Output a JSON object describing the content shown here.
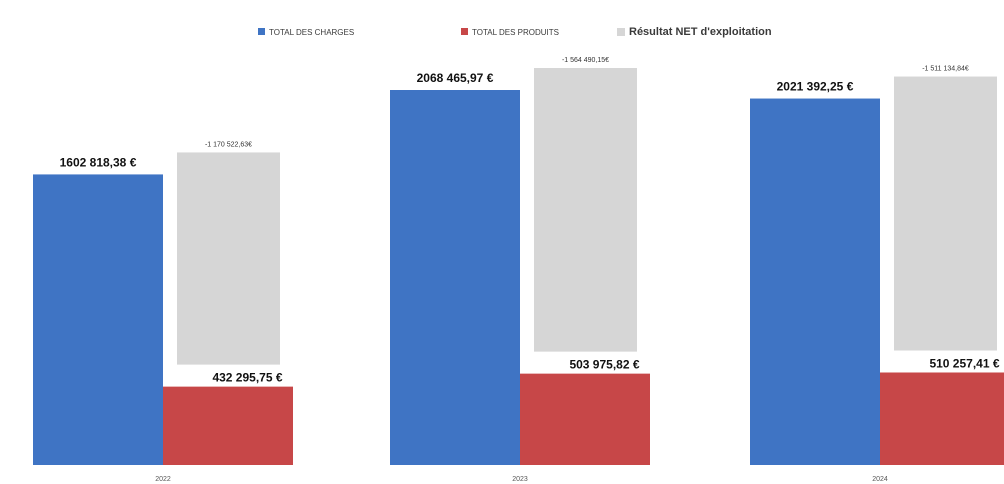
{
  "chart_data": {
    "type": "bar",
    "categories": [
      "2022",
      "2023",
      "2024"
    ],
    "series": [
      {
        "name": "TOTAL DES CHARGES",
        "color": "#3f74c4",
        "values": [
          1602818.38,
          2068465.97,
          2021392.25
        ],
        "labels": [
          "1602 818,38 €",
          "2068 465,97 €",
          "2021 392,25 €"
        ]
      },
      {
        "name": "TOTAL DES PRODUITS",
        "color": "#c74748",
        "values": [
          432295.75,
          503975.82,
          510257.41
        ],
        "labels": [
          "432 295,75 €",
          "503 975,82 €",
          "510 257,41 €"
        ]
      },
      {
        "name": "Résultat NET d'exploitation",
        "color": "#d6d6d6",
        "values": [
          -1170522.63,
          -1564490.15,
          -1511134.84
        ],
        "labels": [
          "-1 170 522,63€",
          "-1 564 490,15€",
          "-1 511 134,84€"
        ]
      }
    ],
    "stacking": "Résultat NET d'exploitation bar is drawn above TOTAL DES PRODUITS bar (height = absolute value)",
    "legend_position": "top",
    "grid": false,
    "xlabel": "",
    "ylabel": ""
  }
}
